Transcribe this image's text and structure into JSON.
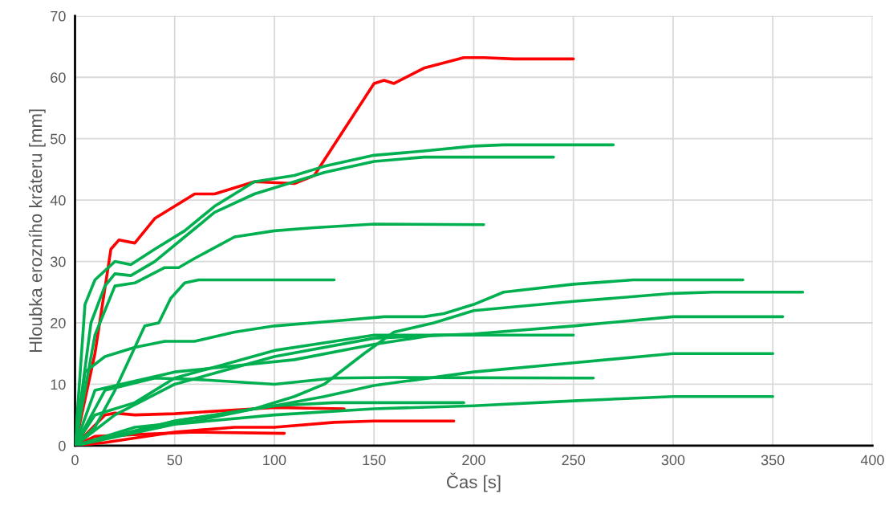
{
  "chart_data": {
    "type": "line",
    "xlabel": "Čas [s]",
    "ylabel": "Hloubka erozního kráteru [mm]",
    "xlim": [
      0,
      400
    ],
    "xticks": [
      0,
      50,
      100,
      150,
      200,
      250,
      300,
      350,
      400
    ],
    "ylim": [
      0,
      70
    ],
    "yticks": [
      0,
      10,
      20,
      30,
      40,
      50,
      60,
      70
    ],
    "grid": true,
    "legend": false,
    "marker": "none",
    "line_style": "solid",
    "series": [
      {
        "color": "#ff0000",
        "x": [
          0,
          10,
          18,
          22,
          30,
          40,
          50,
          60,
          70,
          90,
          110,
          120,
          130,
          150,
          155,
          160,
          175,
          195,
          205,
          220,
          250
        ],
        "values": [
          0,
          15,
          32,
          33.5,
          33,
          37,
          39,
          41,
          41,
          43,
          42.7,
          44,
          49,
          59,
          59.5,
          59,
          61.5,
          63.2,
          63.2,
          63,
          63
        ]
      },
      {
        "color": "#ff0000",
        "x": [
          0,
          15,
          20,
          30,
          50,
          80,
          100,
          135
        ],
        "values": [
          0,
          5,
          5.3,
          5,
          5.2,
          5.8,
          6.2,
          6
        ]
      },
      {
        "color": "#ff0000",
        "x": [
          0,
          15,
          50,
          80,
          100,
          130,
          150,
          190
        ],
        "values": [
          0,
          0.5,
          2.2,
          3,
          3,
          3.8,
          4,
          4
        ]
      },
      {
        "color": "#ff0000",
        "x": [
          0,
          10,
          30,
          60,
          105
        ],
        "values": [
          0,
          1.5,
          1.8,
          2.2,
          2
        ]
      },
      {
        "color": "#00b050",
        "x": [
          0,
          5,
          10,
          20,
          28,
          40,
          55,
          70,
          90,
          110,
          125,
          150,
          175,
          200,
          215,
          270
        ],
        "values": [
          0,
          23,
          27,
          30,
          29.5,
          32,
          35,
          39,
          43,
          44,
          45.5,
          47.3,
          48,
          48.8,
          49,
          49
        ]
      },
      {
        "color": "#00b050",
        "x": [
          0,
          8,
          15,
          20,
          28,
          40,
          55,
          70,
          90,
          110,
          125,
          150,
          175,
          240
        ],
        "values": [
          0,
          20,
          26,
          28,
          27.7,
          30,
          34,
          38,
          41,
          43,
          44.5,
          46.3,
          47,
          47
        ]
      },
      {
        "color": "#00b050",
        "x": [
          0,
          10,
          20,
          30,
          45,
          52,
          60,
          80,
          100,
          120,
          150,
          205
        ],
        "values": [
          0,
          18,
          26,
          26.5,
          29,
          29,
          30.5,
          34,
          35,
          35.5,
          36.1,
          36
        ]
      },
      {
        "color": "#00b050",
        "x": [
          0,
          10,
          20,
          30,
          35,
          42,
          48,
          55,
          62,
          130
        ],
        "values": [
          0,
          3,
          9,
          16,
          19.5,
          20,
          24,
          26.5,
          27,
          27
        ]
      },
      {
        "color": "#00b050",
        "x": [
          0,
          5,
          15,
          30,
          45,
          60,
          80,
          100,
          130,
          155,
          175,
          185,
          200,
          215,
          250,
          280,
          300,
          335
        ],
        "values": [
          0,
          12,
          14.5,
          16,
          17,
          17,
          18.5,
          19.5,
          20.3,
          21,
          21,
          21.5,
          23,
          25,
          26.3,
          27,
          27,
          27
        ]
      },
      {
        "color": "#00b050",
        "x": [
          0,
          30,
          60,
          90,
          110,
          125,
          145,
          160,
          180,
          200,
          250,
          300,
          320,
          365
        ],
        "values": [
          0,
          3,
          4,
          6,
          8,
          10,
          15,
          18.5,
          20,
          22,
          23.5,
          24.8,
          25,
          25
        ]
      },
      {
        "color": "#00b050",
        "x": [
          0,
          20,
          50,
          100,
          150,
          200,
          250,
          300,
          355
        ],
        "values": [
          0,
          5,
          10,
          14.5,
          17.5,
          18.2,
          19.5,
          21,
          21
        ]
      },
      {
        "color": "#00b050",
        "x": [
          0,
          10,
          30,
          50,
          100,
          130,
          150,
          250
        ],
        "values": [
          0,
          5,
          7,
          11,
          15.5,
          17,
          18,
          18
        ]
      },
      {
        "color": "#00b050",
        "x": [
          0,
          10,
          30,
          50,
          80,
          110,
          150,
          180,
          200
        ],
        "values": [
          0,
          9,
          10.5,
          12,
          13,
          14,
          16.5,
          18,
          18
        ]
      },
      {
        "color": "#00b050",
        "x": [
          0,
          15,
          40,
          60,
          100,
          130,
          160,
          260
        ],
        "values": [
          0,
          9,
          11,
          10.8,
          10,
          11,
          11.1,
          11
        ]
      },
      {
        "color": "#00b050",
        "x": [
          0,
          50,
          100,
          125,
          150,
          200,
          250,
          300,
          350
        ],
        "values": [
          0,
          4,
          6.5,
          8,
          9.8,
          12,
          13.5,
          15,
          15
        ]
      },
      {
        "color": "#00b050",
        "x": [
          0,
          50,
          100,
          150,
          200,
          250,
          300,
          350
        ],
        "values": [
          0,
          3.5,
          5,
          6,
          6.5,
          7.3,
          8,
          8
        ]
      },
      {
        "color": "#00b050",
        "x": [
          0,
          50,
          100,
          130,
          195
        ],
        "values": [
          0,
          4,
          6.5,
          7,
          7
        ]
      }
    ]
  }
}
